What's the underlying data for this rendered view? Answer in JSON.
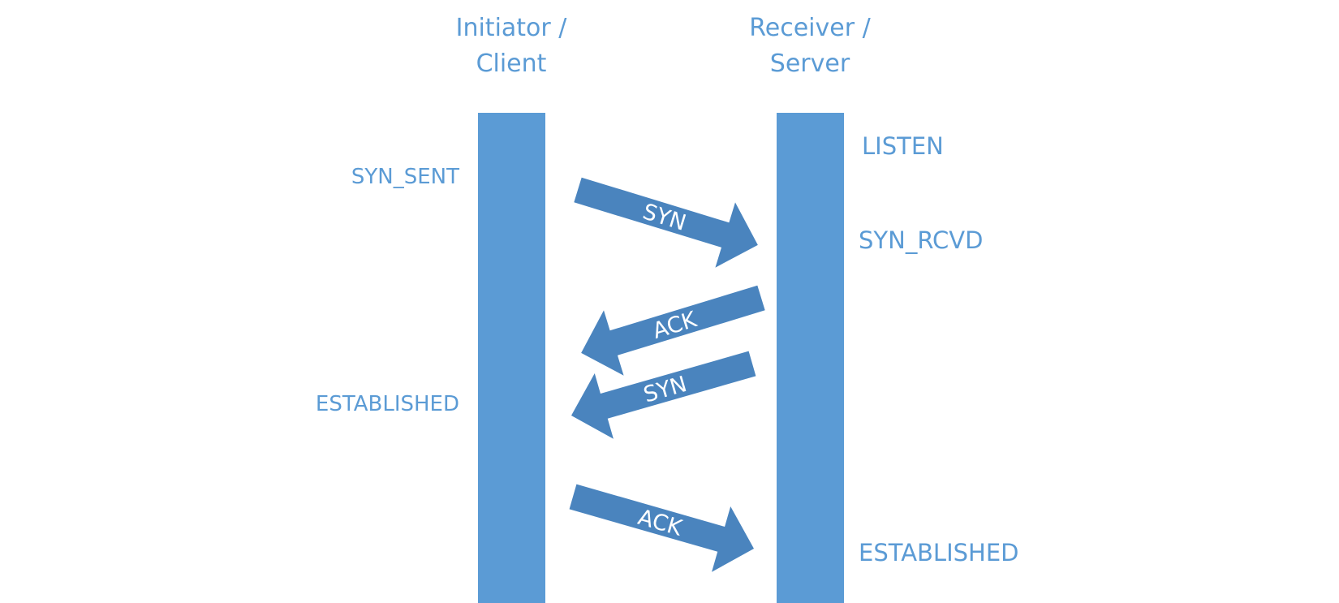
{
  "diagram": {
    "client": {
      "title_line1": "Initiator /",
      "title_line2": "Client",
      "states": {
        "syn_sent": "SYN_SENT",
        "established": "ESTABLISHED"
      }
    },
    "server": {
      "title_line1": "Receiver /",
      "title_line2": "Server",
      "states": {
        "listen": "LISTEN",
        "syn_rcvd": "SYN_RCVD",
        "established": "ESTABLISHED"
      }
    },
    "messages": [
      {
        "label": "SYN",
        "direction": "client-to-server"
      },
      {
        "label": "ACK",
        "direction": "server-to-client"
      },
      {
        "label": "SYN",
        "direction": "server-to-client"
      },
      {
        "label": "ACK",
        "direction": "client-to-server"
      }
    ],
    "colors": {
      "lifeline": "#5b9bd5",
      "arrow": "#4a84be",
      "text": "#5b9bd5",
      "arrow_text": "#ffffff"
    }
  }
}
